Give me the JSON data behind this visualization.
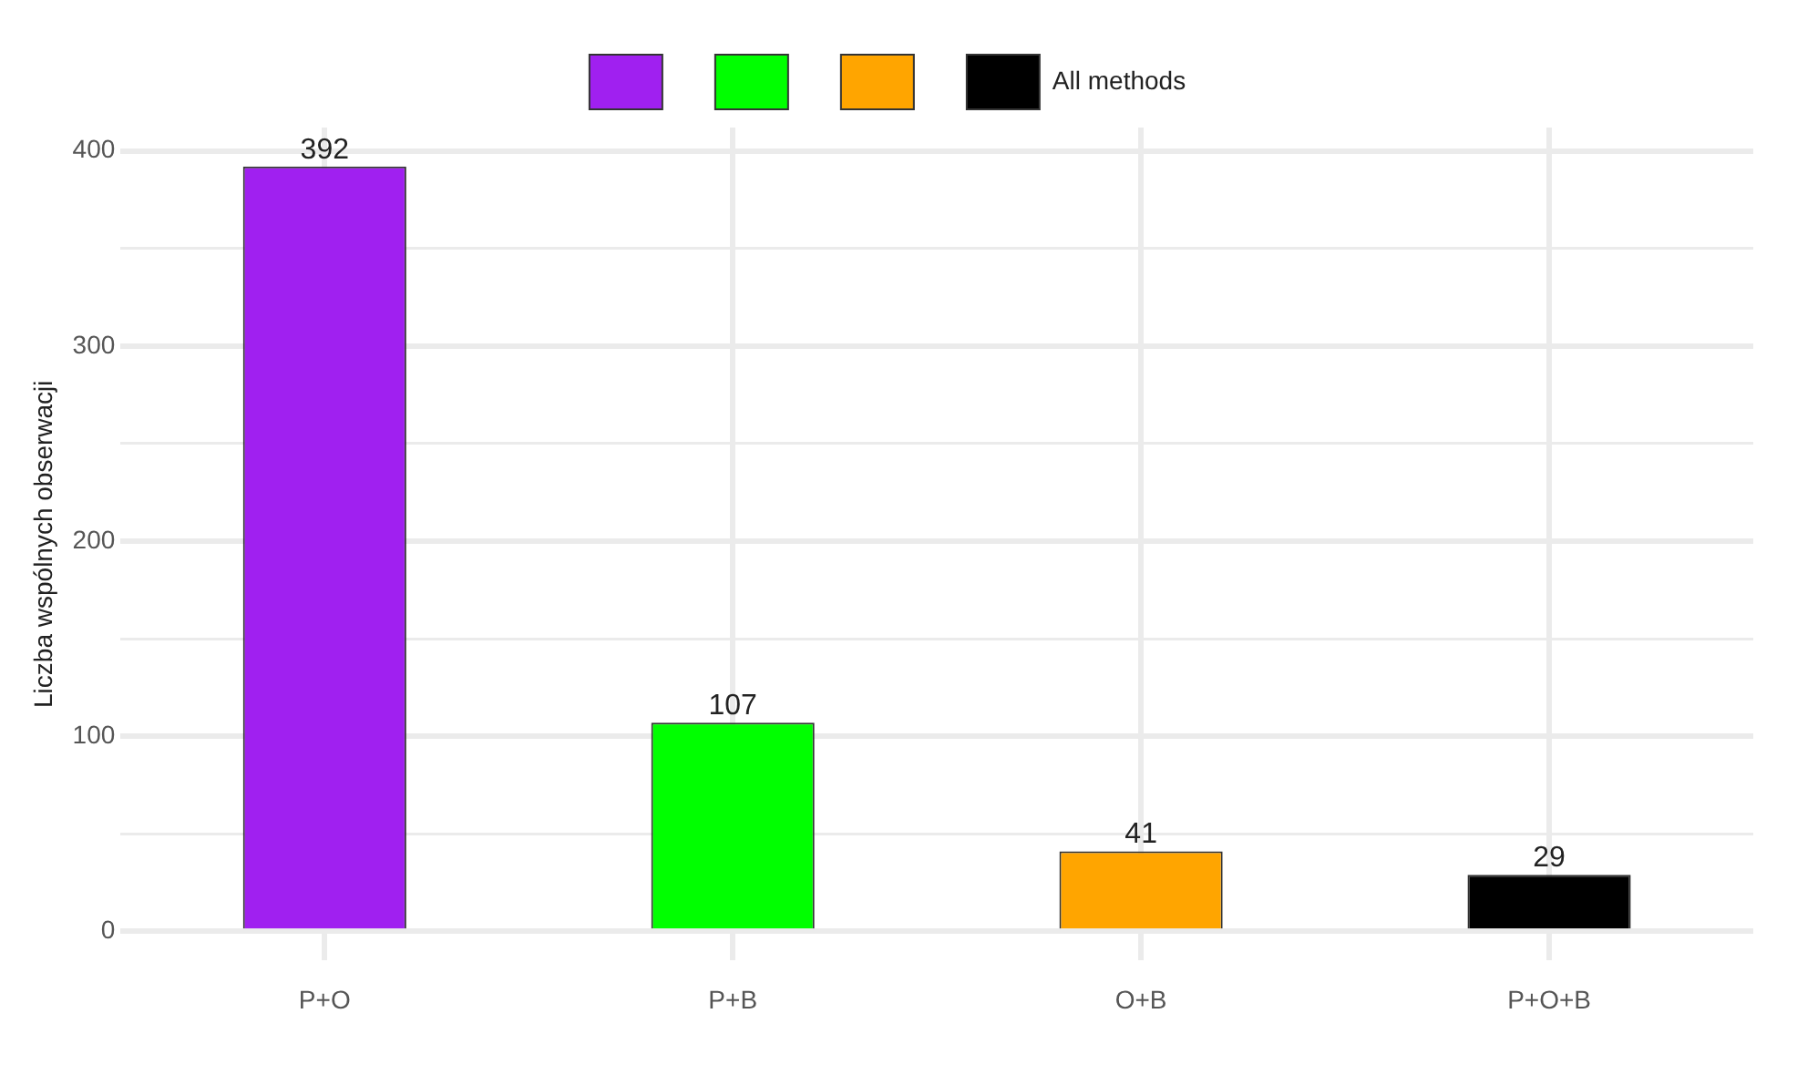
{
  "chart_data": {
    "type": "bar",
    "ylabel": "Liczba wspólnych obserwacji",
    "categories": [
      "P+O",
      "P+B",
      "O+B",
      "P+O+B"
    ],
    "series": [
      {
        "color": "#a020f0",
        "values": [
          392,
          null,
          null,
          null
        ]
      },
      {
        "color": "#00ff00",
        "values": [
          null,
          107,
          null,
          null
        ]
      },
      {
        "color": "#ffa500",
        "values": [
          null,
          null,
          41,
          null
        ]
      },
      {
        "name": "All methods",
        "color": "#000000",
        "values": [
          null,
          null,
          null,
          29
        ]
      }
    ],
    "ylim": [
      -15,
      412
    ],
    "yticks": [
      0,
      {
        "value": 50,
        "label": null
      },
      100,
      {
        "value": 150,
        "label": null
      },
      200,
      {
        "value": 250,
        "label": null
      },
      300,
      {
        "value": 350,
        "label": null
      },
      400
    ],
    "grid": true,
    "legend": "top",
    "data_labels": true
  }
}
